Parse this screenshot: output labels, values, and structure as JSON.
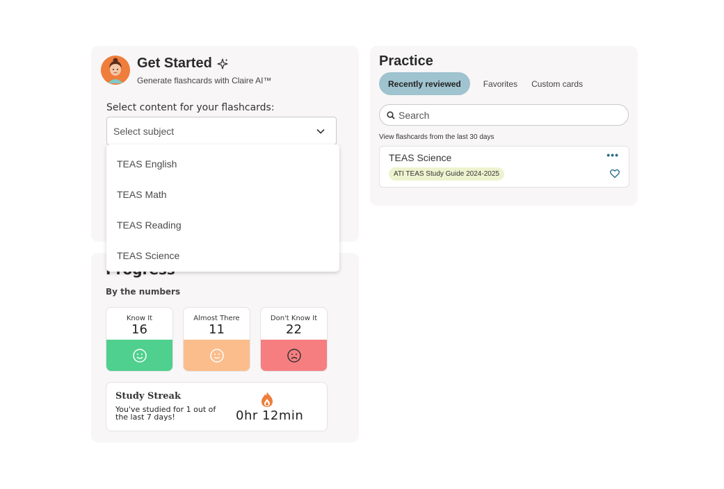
{
  "get_started": {
    "title": "Get Started",
    "subtitle": "Generate flashcards with Claire AI™",
    "select_label": "Select content for your flashcards:",
    "select_placeholder": "Select subject",
    "options": [
      "TEAS English",
      "TEAS Math",
      "TEAS Reading",
      "TEAS Science"
    ]
  },
  "progress": {
    "title": "Progress",
    "subtitle": "By the numbers",
    "stats": [
      {
        "label": "Know It",
        "value": "16",
        "color": "#4fd08e"
      },
      {
        "label": "Almost There",
        "value": "11",
        "color": "#fbbd8b"
      },
      {
        "label": "Don't Know It",
        "value": "22",
        "color": "#f77e80"
      }
    ],
    "streak": {
      "title": "Study Streak",
      "text": "You've studied for 1 out of the last 7 days!",
      "time": "0hr 12min"
    }
  },
  "practice": {
    "title": "Practice",
    "tabs": [
      "Recently reviewed",
      "Favorites",
      "Custom cards"
    ],
    "search_placeholder": "Search",
    "note": "View flashcards from the last 30 days",
    "card": {
      "title": "TEAS Science",
      "tag": "ATI TEAS Study Guide 2024-2025",
      "more": "•••"
    }
  },
  "colors": {
    "accent_tab": "#9fc3cf",
    "link": "#2a6b85",
    "avatar_bg": "#ef7d3b"
  }
}
